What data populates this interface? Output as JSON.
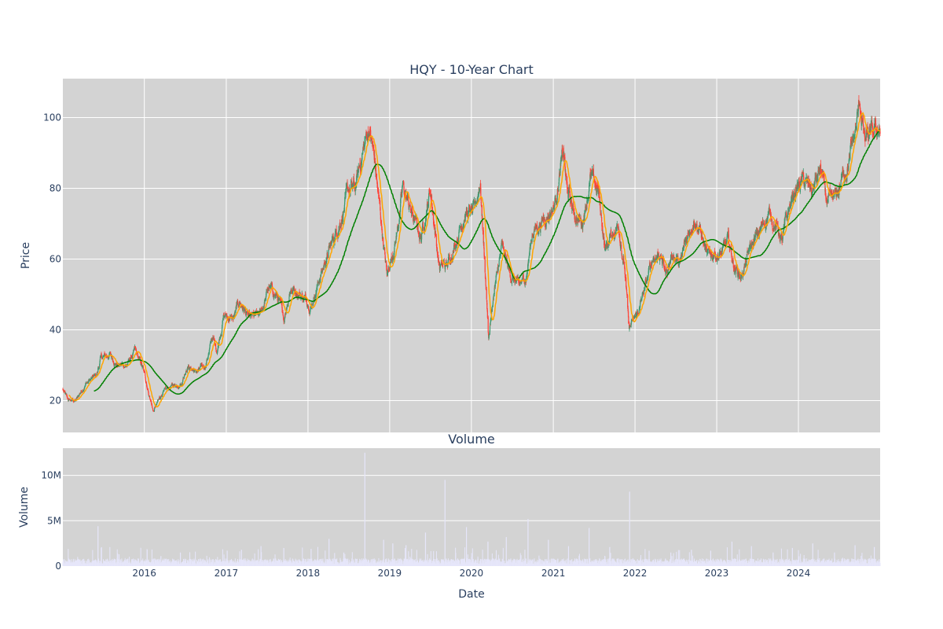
{
  "chart_data": [
    {
      "type": "candlestick",
      "title": "HQY - 10-Year Chart",
      "ylabel": "Price",
      "xlabel": "",
      "xlim": [
        "2015-01-02",
        "2024-12-31"
      ],
      "ylim": [
        11,
        111
      ],
      "grid": true,
      "background": "#d3d3d3",
      "colors": {
        "up": "#3d9970",
        "down": "#ff4136",
        "ma_short": "#ffa500",
        "ma_long": "#008000"
      },
      "y_ticks": [
        20,
        40,
        60,
        80,
        100
      ],
      "price_keypoints": [
        [
          "2015-01-02",
          23
        ],
        [
          "2015-01-25",
          20
        ],
        [
          "2015-03-01",
          20
        ],
        [
          "2015-04-15",
          25
        ],
        [
          "2015-06-01",
          27
        ],
        [
          "2015-06-20",
          32
        ],
        [
          "2015-08-01",
          33
        ],
        [
          "2015-09-01",
          30
        ],
        [
          "2015-10-15",
          30
        ],
        [
          "2015-11-20",
          34
        ],
        [
          "2015-12-25",
          29
        ],
        [
          "2016-02-10",
          17
        ],
        [
          "2016-03-20",
          22
        ],
        [
          "2016-05-01",
          24
        ],
        [
          "2016-06-15",
          25
        ],
        [
          "2016-07-10",
          30
        ],
        [
          "2016-08-20",
          28
        ],
        [
          "2016-09-30",
          30
        ],
        [
          "2016-11-01",
          38
        ],
        [
          "2016-11-20",
          34
        ],
        [
          "2016-12-20",
          44
        ],
        [
          "2017-02-01",
          43
        ],
        [
          "2017-03-01",
          48
        ],
        [
          "2017-04-15",
          43
        ],
        [
          "2017-06-01",
          44
        ],
        [
          "2017-07-10",
          52
        ],
        [
          "2017-08-20",
          49
        ],
        [
          "2017-09-15",
          43
        ],
        [
          "2017-10-15",
          52
        ],
        [
          "2017-12-01",
          50
        ],
        [
          "2018-01-15",
          47
        ],
        [
          "2018-03-01",
          56
        ],
        [
          "2018-04-15",
          64
        ],
        [
          "2018-05-20",
          70
        ],
        [
          "2018-07-01",
          79
        ],
        [
          "2018-08-01",
          80
        ],
        [
          "2018-09-01",
          90
        ],
        [
          "2018-10-01",
          97
        ],
        [
          "2018-10-25",
          88
        ],
        [
          "2018-12-20",
          55
        ],
        [
          "2019-02-01",
          67
        ],
        [
          "2019-03-01",
          80
        ],
        [
          "2019-04-15",
          72
        ],
        [
          "2019-05-20",
          66
        ],
        [
          "2019-07-01",
          80
        ],
        [
          "2019-08-10",
          58
        ],
        [
          "2019-09-15",
          58
        ],
        [
          "2019-11-01",
          67
        ],
        [
          "2019-12-01",
          73
        ],
        [
          "2020-01-15",
          73
        ],
        [
          "2020-02-10",
          82
        ],
        [
          "2020-03-18",
          38
        ],
        [
          "2020-04-10",
          50
        ],
        [
          "2020-05-15",
          63
        ],
        [
          "2020-06-20",
          56
        ],
        [
          "2020-08-01",
          52
        ],
        [
          "2020-09-01",
          55
        ],
        [
          "2020-10-01",
          68
        ],
        [
          "2020-11-01",
          70
        ],
        [
          "2021-01-05",
          75
        ],
        [
          "2021-02-15",
          90
        ],
        [
          "2021-03-01",
          80
        ],
        [
          "2021-04-01",
          73
        ],
        [
          "2021-05-10",
          70
        ],
        [
          "2021-06-15",
          83
        ],
        [
          "2021-07-20",
          79
        ],
        [
          "2021-08-20",
          63
        ],
        [
          "2021-09-20",
          67
        ],
        [
          "2021-10-20",
          70
        ],
        [
          "2021-11-15",
          58
        ],
        [
          "2021-12-05",
          40
        ],
        [
          "2022-01-15",
          45
        ],
        [
          "2022-02-20",
          53
        ],
        [
          "2022-03-20",
          60
        ],
        [
          "2022-04-20",
          62
        ],
        [
          "2022-05-20",
          56
        ],
        [
          "2022-06-20",
          62
        ],
        [
          "2022-07-20",
          58
        ],
        [
          "2022-08-20",
          66
        ],
        [
          "2022-09-20",
          72
        ],
        [
          "2022-10-20",
          68
        ],
        [
          "2022-11-20",
          60
        ],
        [
          "2022-12-20",
          62
        ],
        [
          "2023-01-20",
          61
        ],
        [
          "2023-02-20",
          65
        ],
        [
          "2023-03-20",
          58
        ],
        [
          "2023-04-20",
          55
        ],
        [
          "2023-06-01",
          63
        ],
        [
          "2023-07-15",
          68
        ],
        [
          "2023-08-20",
          73
        ],
        [
          "2023-09-20",
          70
        ],
        [
          "2023-10-20",
          65
        ],
        [
          "2023-11-20",
          74
        ],
        [
          "2023-12-20",
          80
        ],
        [
          "2024-01-20",
          82
        ],
        [
          "2024-03-01",
          79
        ],
        [
          "2024-04-10",
          85
        ],
        [
          "2024-05-10",
          75
        ],
        [
          "2024-06-15",
          77
        ],
        [
          "2024-07-15",
          83
        ],
        [
          "2024-08-15",
          88
        ],
        [
          "2024-09-15",
          97
        ],
        [
          "2024-10-01",
          104
        ],
        [
          "2024-10-25",
          93
        ],
        [
          "2024-12-31",
          97
        ]
      ],
      "x_ticks": [
        "2016",
        "2017",
        "2018",
        "2019",
        "2020",
        "2021",
        "2022",
        "2023",
        "2024"
      ]
    },
    {
      "type": "bar",
      "title": "Volume",
      "xlabel": "Date",
      "ylabel": "Volume",
      "ylim": [
        0,
        13000000
      ],
      "y_ticks": [
        {
          "value": 0,
          "label": "0"
        },
        {
          "value": 5000000,
          "label": "5M"
        },
        {
          "value": 10000000,
          "label": "10M"
        }
      ],
      "x_ticks": [
        "2016",
        "2017",
        "2018",
        "2019",
        "2020",
        "2021",
        "2022",
        "2023",
        "2024"
      ],
      "bar_color": "#e6e6fa",
      "baseline_volume": 500000,
      "volume_spikes": [
        [
          "2015-06-08",
          4400000
        ],
        [
          "2015-09-10",
          1300000
        ],
        [
          "2016-03-15",
          1100000
        ],
        [
          "2016-06-10",
          1500000
        ],
        [
          "2017-01-05",
          1700000
        ],
        [
          "2017-03-10",
          1800000
        ],
        [
          "2017-06-05",
          2200000
        ],
        [
          "2017-09-15",
          2000000
        ],
        [
          "2018-01-15",
          1900000
        ],
        [
          "2018-04-05",
          3000000
        ],
        [
          "2018-06-10",
          1500000
        ],
        [
          "2018-09-12",
          12500000
        ],
        [
          "2018-12-05",
          2900000
        ],
        [
          "2019-01-15",
          2500000
        ],
        [
          "2019-03-15",
          2300000
        ],
        [
          "2019-06-10",
          3700000
        ],
        [
          "2019-09-05",
          9500000
        ],
        [
          "2019-12-10",
          4300000
        ],
        [
          "2020-03-15",
          2700000
        ],
        [
          "2020-06-05",
          3200000
        ],
        [
          "2020-09-10",
          5200000
        ],
        [
          "2020-12-10",
          2900000
        ],
        [
          "2021-03-10",
          2200000
        ],
        [
          "2021-06-10",
          4200000
        ],
        [
          "2021-09-10",
          2100000
        ],
        [
          "2021-12-08",
          8200000
        ],
        [
          "2022-03-05",
          1700000
        ],
        [
          "2022-06-10",
          1500000
        ],
        [
          "2022-09-10",
          1800000
        ],
        [
          "2022-12-05",
          1700000
        ],
        [
          "2023-03-10",
          2700000
        ],
        [
          "2023-06-05",
          2200000
        ],
        [
          "2023-09-10",
          1500000
        ],
        [
          "2023-12-05",
          2000000
        ],
        [
          "2024-03-05",
          2500000
        ],
        [
          "2024-06-10",
          1500000
        ],
        [
          "2024-09-10",
          2300000
        ],
        [
          "2024-12-05",
          2100000
        ]
      ]
    }
  ]
}
